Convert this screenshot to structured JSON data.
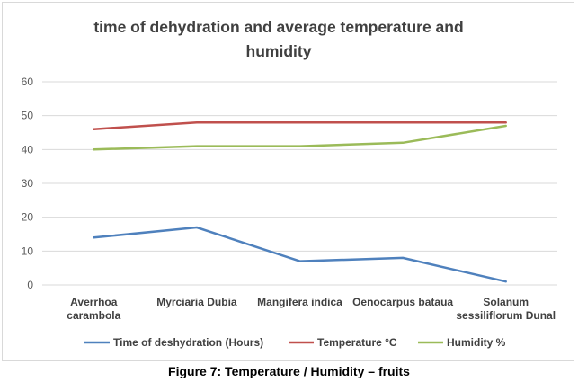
{
  "caption": "Figure 7: Temperature / Humidity – fruits",
  "chart_data": {
    "type": "line",
    "title_lines": [
      "time of dehydration and average temperature and",
      "humidity"
    ],
    "categories": [
      [
        "Averrhoa",
        "carambola"
      ],
      [
        "Myrciaria Dubia"
      ],
      [
        "Mangifera indica"
      ],
      [
        "Oenocarpus bataua"
      ],
      [
        "Solanum",
        "sessiliflorum Dunal"
      ]
    ],
    "ylim": [
      0,
      60
    ],
    "yticks": [
      "0",
      "10",
      "20",
      "30",
      "40",
      "50",
      "60"
    ],
    "grid": true,
    "legend_position": "bottom",
    "series": [
      {
        "name": "Time of deshydration (Hours)",
        "color": "#4f81bd",
        "values": [
          14,
          17,
          7,
          8,
          1
        ]
      },
      {
        "name": "Temperature °C",
        "color": "#c0504d",
        "values": [
          46,
          48,
          48,
          48,
          48
        ]
      },
      {
        "name": "Humidity %",
        "color": "#9bbb59",
        "values": [
          40,
          41,
          41,
          42,
          47
        ]
      }
    ]
  }
}
